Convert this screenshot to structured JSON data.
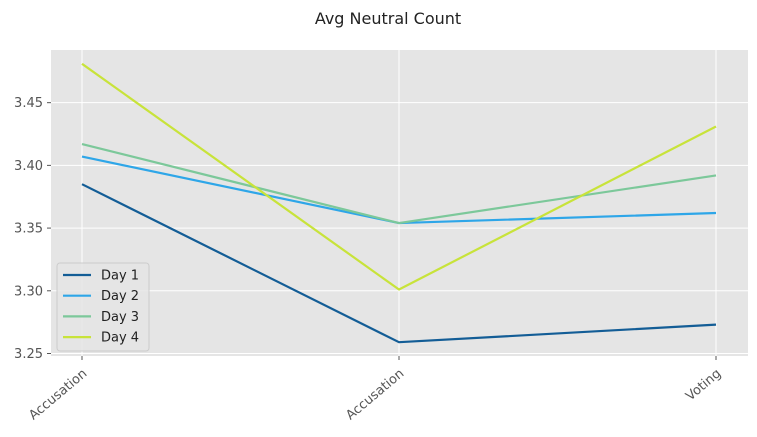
{
  "chart_data": {
    "type": "line",
    "title": "Avg Neutral Count",
    "xlabel": "",
    "ylabel": "",
    "categories": [
      "Accusation",
      "Accusation",
      "Voting"
    ],
    "ylim": [
      3.248,
      3.492
    ],
    "yticks": [
      "3.25",
      "3.30",
      "3.35",
      "3.40",
      "3.45"
    ],
    "grid": true,
    "legend_position": "lower-left",
    "series": [
      {
        "name": "Day 1",
        "color": "#135d96",
        "values": [
          3.385,
          3.259,
          3.273
        ]
      },
      {
        "name": "Day 2",
        "color": "#2ea6e8",
        "values": [
          3.407,
          3.354,
          3.362
        ]
      },
      {
        "name": "Day 3",
        "color": "#7cc89a",
        "values": [
          3.417,
          3.354,
          3.392
        ]
      },
      {
        "name": "Day 4",
        "color": "#c8e33a",
        "values": [
          3.481,
          3.301,
          3.431
        ]
      }
    ]
  }
}
